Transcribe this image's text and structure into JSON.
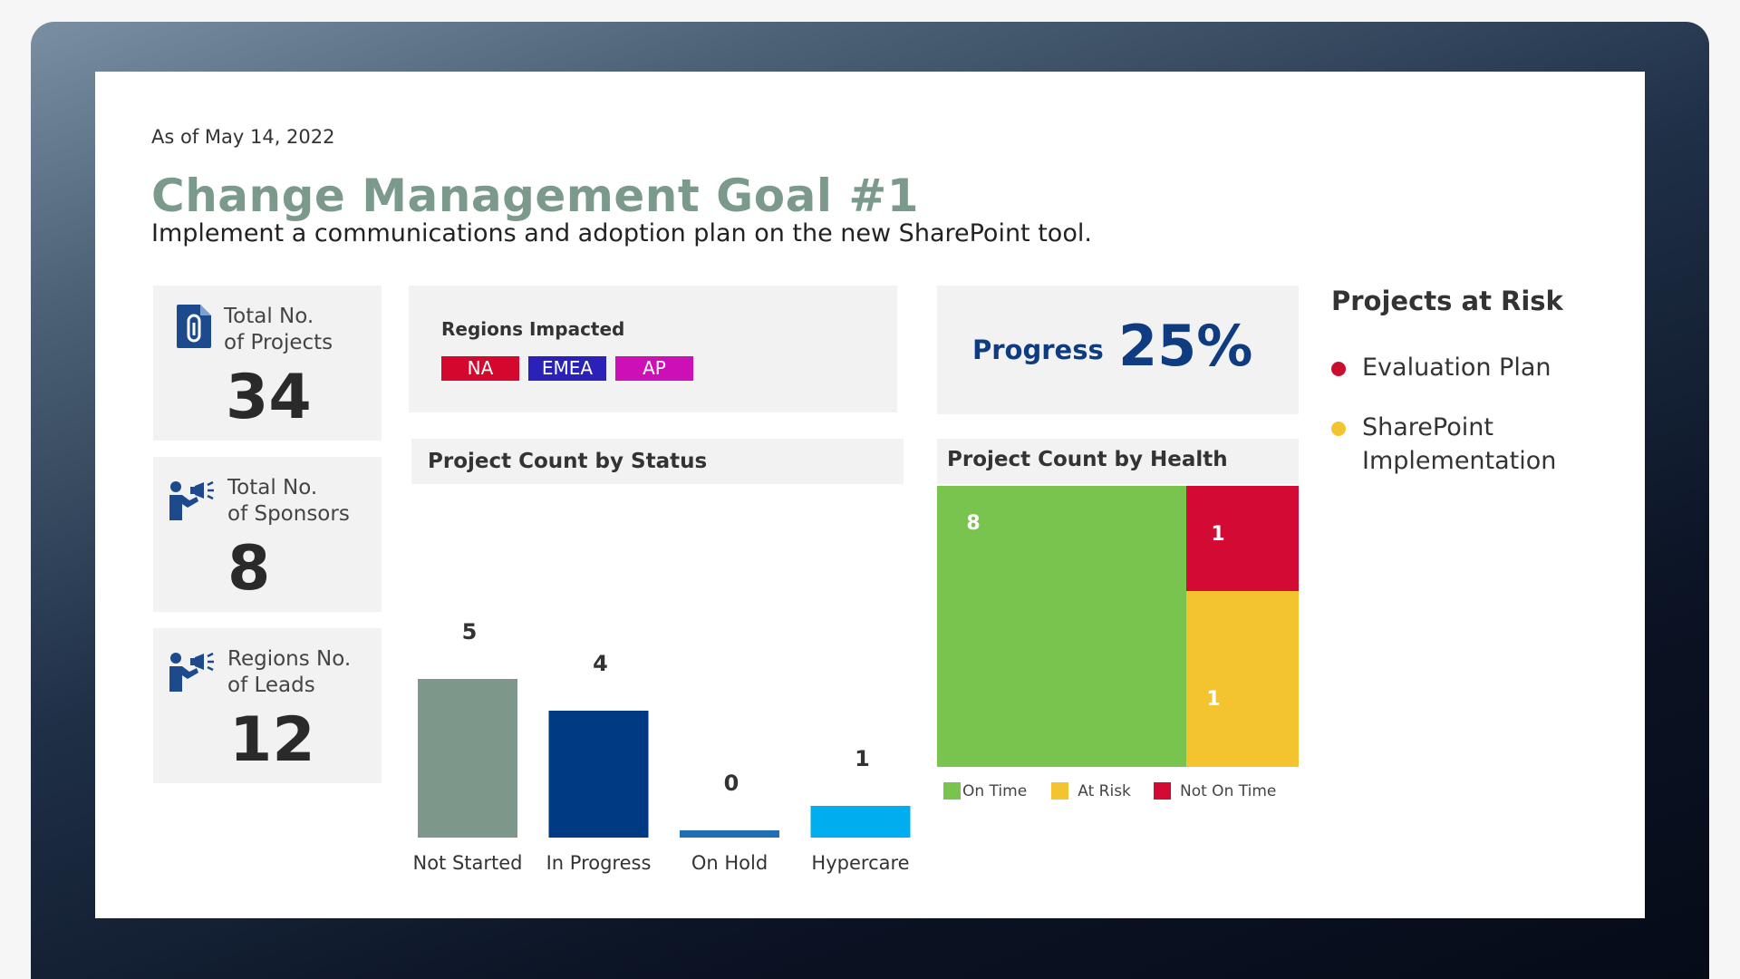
{
  "date": "As of May 14, 2022",
  "title": "Change Management Goal #1",
  "subtitle": "Implement a communications and adoption plan on the new SharePoint tool.",
  "kpis": [
    {
      "label": "Total No.\nof Projects",
      "value": "34",
      "icon": "document-clip-icon"
    },
    {
      "label": "Total No.\nof Sponsors",
      "value": "8",
      "icon": "megaphone-person-icon"
    },
    {
      "label": "Regions No.\nof Leads",
      "value": "12",
      "icon": "megaphone-person-icon"
    }
  ],
  "regions": {
    "title": "Regions Impacted",
    "tags": [
      {
        "label": "NA",
        "color": "#d4082f"
      },
      {
        "label": "EMEA",
        "color": "#2a22b8"
      },
      {
        "label": "AP",
        "color": "#cc0fb7"
      }
    ]
  },
  "progress": {
    "label": "Progress",
    "value": "25%",
    "color": "#0f3b80"
  },
  "status_title": "Project Count by Status",
  "health_title": "Project Count by Health",
  "risk": {
    "title": "Projects at Risk",
    "items": [
      {
        "label": "Evaluation Plan",
        "color": "#c8102e"
      },
      {
        "label": "SharePoint\nImplementation",
        "color": "#f4c430"
      }
    ]
  },
  "chart_data": [
    {
      "type": "bar",
      "title": "Project Count by Status",
      "categories": [
        "Not Started",
        "In Progress",
        "On Hold",
        "Hypercare"
      ],
      "values": [
        5,
        4,
        0,
        1
      ],
      "colors": [
        "#7d988b",
        "#003a82",
        "#1f6fb5",
        "#00aeef"
      ],
      "ylim": [
        0,
        5
      ]
    },
    {
      "type": "treemap",
      "title": "Project Count by Health",
      "categories": [
        "On Time",
        "Not On Time",
        "At Risk"
      ],
      "values": [
        8,
        1,
        1
      ],
      "colors": [
        "#78c44f",
        "#d20a34",
        "#f4c430"
      ],
      "legend": [
        "On Time",
        "At Risk",
        "Not On Time"
      ],
      "legend_colors": [
        "#78c44f",
        "#f4c430",
        "#d20a34"
      ]
    }
  ]
}
